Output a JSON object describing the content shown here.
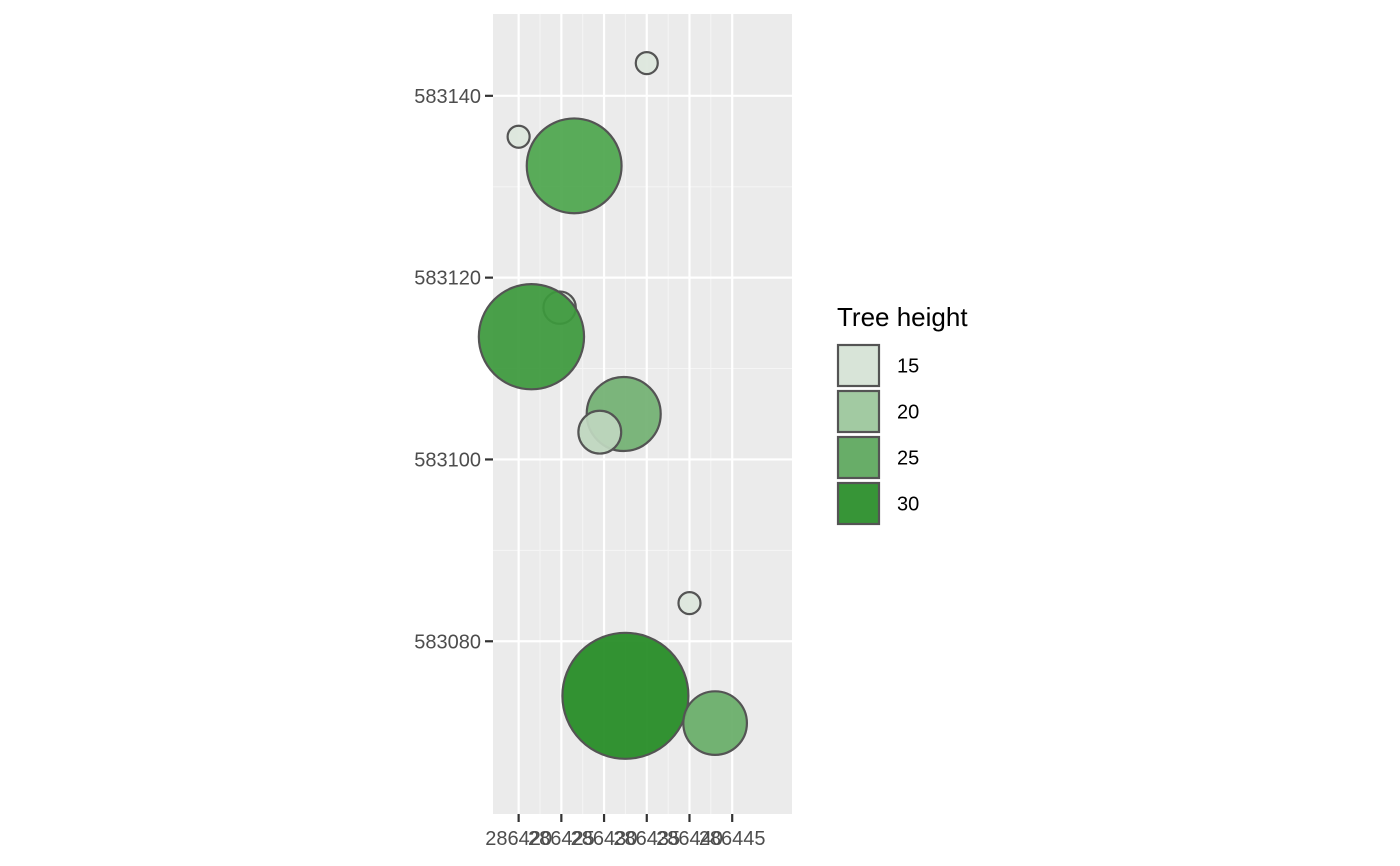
{
  "chart_data": {
    "type": "scatter",
    "xlim": [
      286417,
      286452
    ],
    "ylim": [
      583061,
      583149
    ],
    "x_ticks": [
      286420,
      286425,
      286430,
      286435,
      286440,
      286445
    ],
    "x_tick_labels": [
      "286420",
      "286425",
      "286430",
      "286435",
      "286440",
      "286445"
    ],
    "y_ticks": [
      583080,
      583100,
      583120,
      583140
    ],
    "y_tick_labels": [
      "583080",
      "583100",
      "583120",
      "583140"
    ],
    "xlabel": "",
    "ylabel": "",
    "grid": true,
    "legend": {
      "title": "Tree height",
      "placement": "right",
      "entries": [
        {
          "label": "15",
          "color": "#d8e4d8"
        },
        {
          "label": "20",
          "color": "#a2caa2"
        },
        {
          "label": "25",
          "color": "#68ad68"
        },
        {
          "label": "30",
          "color": "#379537"
        }
      ]
    },
    "points": [
      {
        "x": 286435.0,
        "y": 583143.6,
        "height": 14,
        "color": "#dde6dd"
      },
      {
        "x": 286420.0,
        "y": 583135.5,
        "height": 14,
        "color": "#dde6dd"
      },
      {
        "x": 286426.5,
        "y": 583132.3,
        "height": 28,
        "color": "#4da64d"
      },
      {
        "x": 286424.8,
        "y": 583116.7,
        "height": 16,
        "color": "#d2e2d2"
      },
      {
        "x": 286421.5,
        "y": 583113.5,
        "height": 30,
        "color": "#3c993c"
      },
      {
        "x": 286432.3,
        "y": 583105.0,
        "height": 24,
        "color": "#72b072"
      },
      {
        "x": 286429.5,
        "y": 583103.0,
        "height": 18,
        "color": "#bed6be"
      },
      {
        "x": 286440.0,
        "y": 583084.2,
        "height": 14,
        "color": "#dde6dd"
      },
      {
        "x": 286432.5,
        "y": 583074.0,
        "height": 34,
        "color": "#238b23"
      },
      {
        "x": 286443.0,
        "y": 583071.0,
        "height": 22,
        "color": "#68ad68"
      }
    ]
  }
}
